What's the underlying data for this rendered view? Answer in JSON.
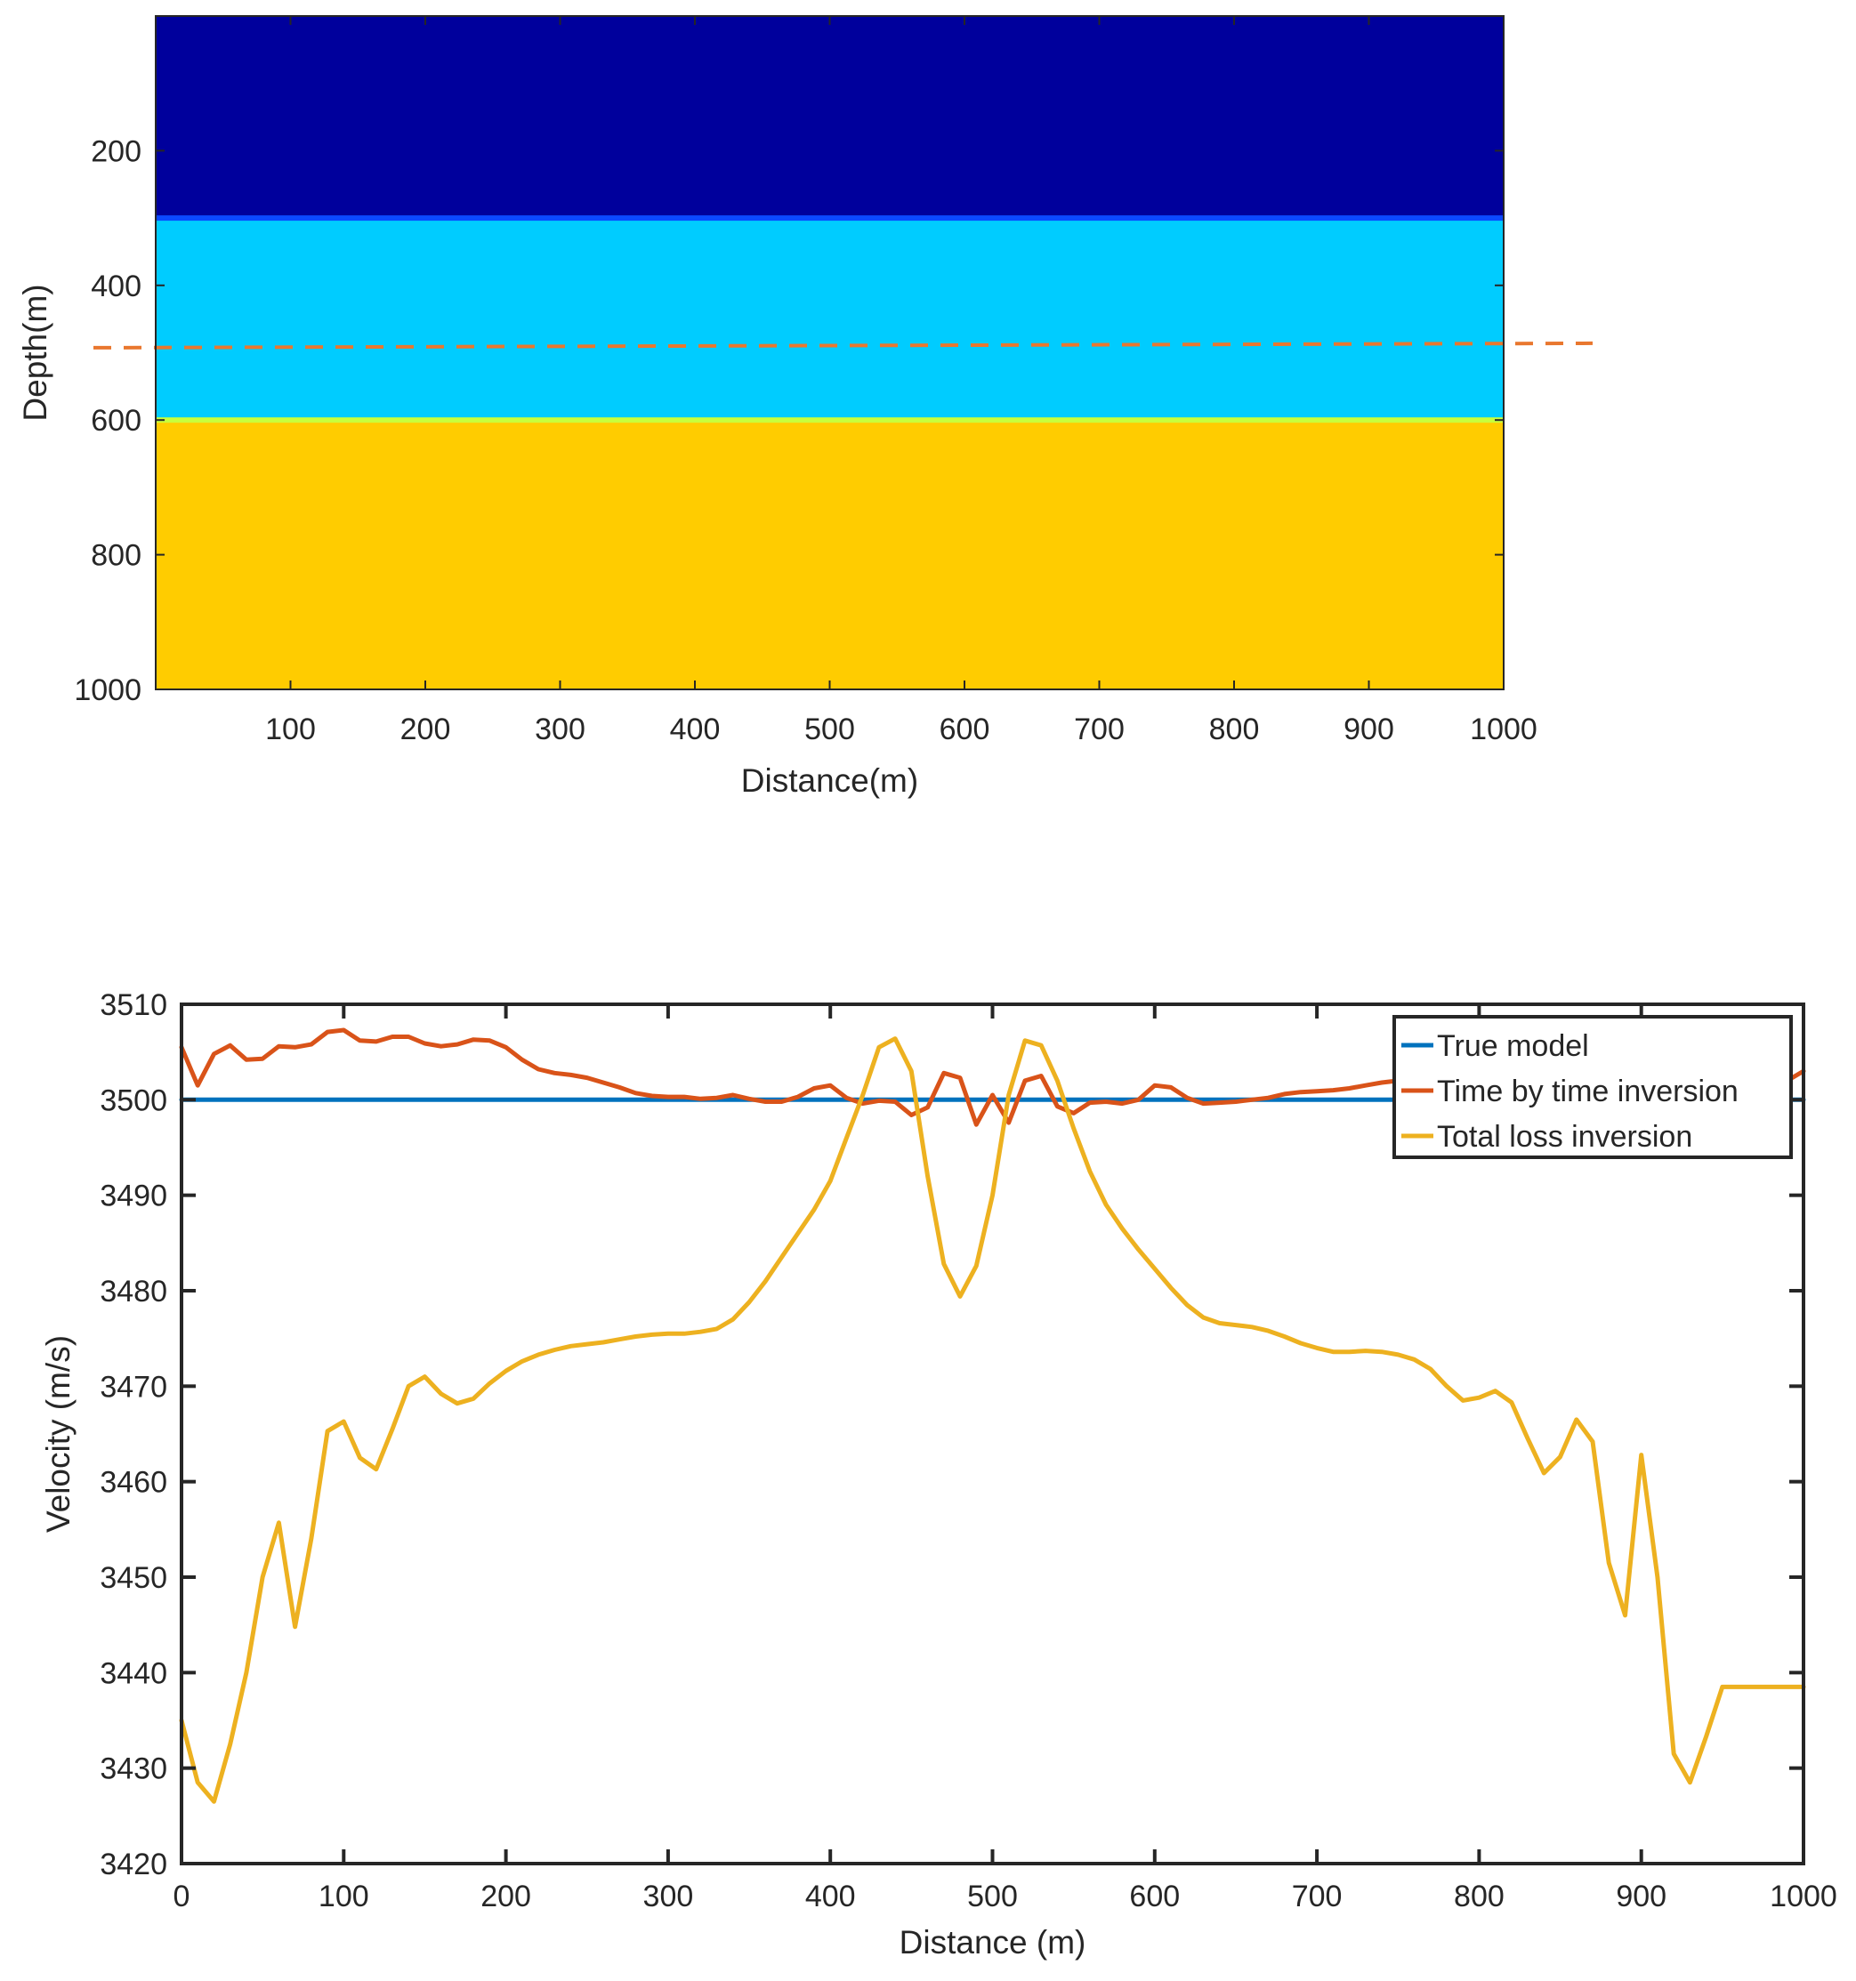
{
  "chart_data": [
    {
      "type": "heatmap",
      "title": "",
      "xlabel": "Distance(m)",
      "ylabel": "Depth(m)",
      "xlim": [
        0,
        1000
      ],
      "ylim": [
        0,
        1000
      ],
      "y_reversed": true,
      "xticks": [
        100,
        200,
        300,
        400,
        500,
        600,
        700,
        800,
        900,
        1000
      ],
      "yticks": [
        200,
        400,
        600,
        800,
        1000
      ],
      "layers": [
        {
          "top": 0,
          "bottom": 300,
          "color": "#00009c"
        },
        {
          "top": 300,
          "bottom": 600,
          "color": "#00ccff"
        },
        {
          "top": 600,
          "bottom": 1000,
          "color": "#ffcc00"
        }
      ],
      "boundary_colors": [
        "#0b49ff",
        "#c8ff3c"
      ],
      "annotation": {
        "type": "dashed-line",
        "depth": 490,
        "color": "#e9772e",
        "extends_beyond_right": true
      }
    },
    {
      "type": "line",
      "title": "",
      "xlabel": "Distance (m)",
      "ylabel": "Velocity (m/s)",
      "xlim": [
        0,
        1000
      ],
      "ylim": [
        3420,
        3510
      ],
      "xticks": [
        0,
        100,
        200,
        300,
        400,
        500,
        600,
        700,
        800,
        900,
        1000
      ],
      "yticks": [
        3420,
        3430,
        3440,
        3450,
        3460,
        3470,
        3480,
        3490,
        3500,
        3510
      ],
      "grid": false,
      "legend_position": "top-right",
      "series": [
        {
          "name": "True model",
          "color": "#0072bd",
          "x": [
            0,
            1000
          ],
          "y": [
            3500,
            3500
          ]
        },
        {
          "name": "Time by time inversion",
          "color": "#d95319",
          "x": [
            0,
            10,
            20,
            30,
            40,
            50,
            60,
            70,
            80,
            90,
            100,
            110,
            120,
            130,
            140,
            150,
            160,
            170,
            180,
            190,
            200,
            210,
            220,
            230,
            240,
            250,
            260,
            270,
            280,
            290,
            300,
            310,
            320,
            330,
            340,
            350,
            360,
            370,
            380,
            390,
            400,
            410,
            420,
            430,
            440,
            450,
            460,
            470,
            480,
            490,
            500,
            510,
            520,
            530,
            540,
            550,
            560,
            570,
            580,
            590,
            600,
            610,
            620,
            630,
            640,
            650,
            660,
            670,
            680,
            690,
            700,
            710,
            720,
            730,
            740,
            750,
            760,
            770,
            780,
            790,
            800,
            810,
            820,
            830,
            840,
            850,
            860,
            870,
            880,
            890,
            900,
            910,
            920,
            930,
            940,
            950,
            960,
            970,
            980,
            990,
            1000
          ],
          "y": [
            3505.5,
            3501.5,
            3504.8,
            3505.7,
            3504.2,
            3504.3,
            3505.6,
            3505.5,
            3505.8,
            3507.1,
            3507.3,
            3506.2,
            3506.1,
            3506.6,
            3506.6,
            3505.9,
            3505.6,
            3505.8,
            3506.3,
            3506.2,
            3505.5,
            3504.2,
            3503.2,
            3502.8,
            3502.6,
            3502.3,
            3501.8,
            3501.3,
            3500.7,
            3500.4,
            3500.3,
            3500.3,
            3500.1,
            3500.2,
            3500.5,
            3500.1,
            3499.8,
            3499.8,
            3500.3,
            3501.2,
            3501.5,
            3500.2,
            3499.6,
            3499.9,
            3499.8,
            3498.4,
            3499.2,
            3502.8,
            3502.3,
            3497.4,
            3500.5,
            3497.6,
            3502.0,
            3502.5,
            3499.3,
            3498.6,
            3499.7,
            3499.8,
            3499.6,
            3500.0,
            3501.5,
            3501.3,
            3500.2,
            3499.6,
            3499.7,
            3499.8,
            3500.0,
            3500.2,
            3500.6,
            3500.8,
            3500.9,
            3501.0,
            3501.2,
            3501.5,
            3501.8,
            3502.0,
            3502.2,
            3502.4,
            3502.5,
            3502.6,
            3502.6,
            3502.5,
            3502.4,
            3502.3,
            3502.2,
            3502.1,
            3502.0,
            3501.9,
            3501.8,
            3501.7,
            3501.7,
            3501.6,
            3501.6,
            3501.5,
            3501.5,
            3501.6,
            3501.6,
            3501.7,
            3501.8,
            3502.0,
            3503.0
          ]
        },
        {
          "name": "Total loss inversion",
          "color": "#edb120",
          "x": [
            0,
            10,
            20,
            30,
            40,
            50,
            60,
            70,
            80,
            90,
            100,
            110,
            120,
            130,
            140,
            150,
            160,
            170,
            180,
            190,
            200,
            210,
            220,
            230,
            240,
            250,
            260,
            270,
            280,
            290,
            300,
            310,
            320,
            330,
            340,
            350,
            360,
            370,
            380,
            390,
            400,
            410,
            420,
            430,
            440,
            450,
            460,
            470,
            480,
            490,
            500,
            510,
            520,
            530,
            540,
            550,
            560,
            570,
            580,
            590,
            600,
            610,
            620,
            630,
            640,
            650,
            660,
            670,
            680,
            690,
            700,
            710,
            720,
            730,
            740,
            750,
            760,
            770,
            780,
            790,
            800,
            810,
            820,
            830,
            840,
            850,
            860,
            870,
            880,
            890,
            900,
            910,
            920,
            930,
            940,
            950,
            960,
            970,
            980,
            990,
            1000
          ],
          "y": [
            3435.0,
            3428.5,
            3426.5,
            3432.5,
            3440.0,
            3450.0,
            3455.7,
            3444.8,
            3454.0,
            3465.3,
            3466.3,
            3462.5,
            3461.3,
            3465.5,
            3470.0,
            3471.0,
            3469.2,
            3468.2,
            3468.7,
            3470.3,
            3471.6,
            3472.6,
            3473.3,
            3473.8,
            3474.2,
            3474.4,
            3474.6,
            3474.9,
            3475.2,
            3475.4,
            3475.5,
            3475.5,
            3475.7,
            3476.0,
            3477.0,
            3478.8,
            3481.0,
            3483.5,
            3486.0,
            3488.5,
            3491.5,
            3496.0,
            3500.5,
            3505.5,
            3506.4,
            3503.0,
            3492.0,
            3482.8,
            3479.4,
            3482.6,
            3490.0,
            3500.5,
            3506.2,
            3505.7,
            3502.0,
            3497.0,
            3492.5,
            3489.0,
            3486.5,
            3484.3,
            3482.3,
            3480.3,
            3478.5,
            3477.2,
            3476.6,
            3476.4,
            3476.2,
            3475.8,
            3475.2,
            3474.5,
            3474.0,
            3473.6,
            3473.6,
            3473.7,
            3473.6,
            3473.3,
            3472.8,
            3471.8,
            3470.0,
            3468.5,
            3468.8,
            3469.5,
            3468.3,
            3464.5,
            3460.9,
            3462.6,
            3466.5,
            3464.2,
            3451.5,
            3446.0,
            3462.8,
            3450.0,
            3431.5,
            3428.5,
            3433.3,
            3438.5,
            3438.5,
            3438.5,
            3438.5,
            3438.5,
            3438.5
          ]
        }
      ]
    }
  ]
}
